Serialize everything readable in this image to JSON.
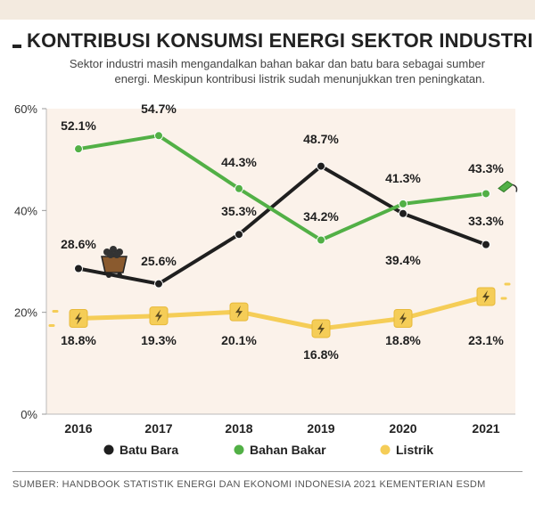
{
  "header": {
    "title": "KONTRIBUSI KONSUMSI ENERGI SEKTOR INDUSTRI",
    "subtitle": "Sektor industri masih mengandalkan bahan bakar dan batu bara sebagai sumber energi. Meskipun kontribusi listrik sudah menunjukkan tren peningkatan."
  },
  "footer": {
    "source": "SUMBER: HANDBOOK STATISTIK ENERGI DAN EKONOMI INDONESIA 2021 KEMENTERIAN ESDM"
  },
  "icons": {
    "coal": "coal-cart-icon",
    "fuel": "fuel-nozzle-icon",
    "electric": "lightning-icon"
  },
  "chart_data": {
    "type": "line",
    "title": "KONTRIBUSI KONSUMSI ENERGI SEKTOR INDUSTRI",
    "xlabel": "",
    "ylabel": "",
    "categories": [
      "2016",
      "2017",
      "2018",
      "2019",
      "2020",
      "2021"
    ],
    "ylim": [
      0,
      60
    ],
    "yticks": [
      "0%",
      "20%",
      "40%",
      "60%"
    ],
    "grid": false,
    "legend_position": "bottom",
    "series": [
      {
        "name": "Batu Bara",
        "color": "#1f1f1f",
        "values": [
          28.6,
          25.6,
          35.3,
          48.7,
          39.4,
          33.3
        ],
        "labels": [
          "28.6%",
          "25.6%",
          "35.3%",
          "48.7%",
          "39.4%",
          "33.3%"
        ]
      },
      {
        "name": "Bahan Bakar",
        "color": "#52b046",
        "values": [
          52.1,
          54.7,
          44.3,
          34.2,
          41.3,
          43.3
        ],
        "labels": [
          "52.1%",
          "54.7%",
          "44.3%",
          "34.2%",
          "41.3%",
          "43.3%"
        ]
      },
      {
        "name": "Listrik",
        "color": "#f5cd57",
        "values": [
          18.8,
          19.3,
          20.1,
          16.8,
          18.8,
          23.1
        ],
        "labels": [
          "18.8%",
          "19.3%",
          "20.1%",
          "16.8%",
          "18.8%",
          "23.1%"
        ]
      }
    ]
  }
}
